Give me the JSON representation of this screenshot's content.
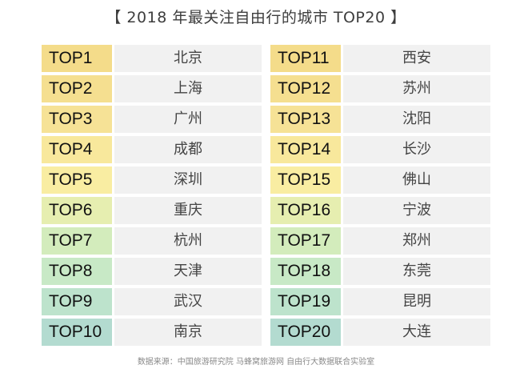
{
  "title": "【 2018 年最关注自由行的城市 TOP20 】",
  "colors": {
    "top1": "#f4dc8a",
    "top2": "#f5df90",
    "top3": "#f6e296",
    "top4": "#f8e89c",
    "top5": "#f9eda2",
    "top6": "#e6eeb0",
    "top7": "#d3ecbc",
    "top8": "#c8e9c6",
    "top9": "#bde3cc",
    "top10": "#b3dbd0",
    "city_bg": "#f1f1f1"
  },
  "left_column": [
    {
      "rank": "TOP1",
      "city": "北京"
    },
    {
      "rank": "TOP2",
      "city": "上海"
    },
    {
      "rank": "TOP3",
      "city": "广州"
    },
    {
      "rank": "TOP4",
      "city": "成都"
    },
    {
      "rank": "TOP5",
      "city": "深圳"
    },
    {
      "rank": "TOP6",
      "city": "重庆"
    },
    {
      "rank": "TOP7",
      "city": "杭州"
    },
    {
      "rank": "TOP8",
      "city": "天津"
    },
    {
      "rank": "TOP9",
      "city": "武汉"
    },
    {
      "rank": "TOP10",
      "city": "南京"
    }
  ],
  "right_column": [
    {
      "rank": "TOP11",
      "city": "西安"
    },
    {
      "rank": "TOP12",
      "city": "苏州"
    },
    {
      "rank": "TOP13",
      "city": "沈阳"
    },
    {
      "rank": "TOP14",
      "city": "长沙"
    },
    {
      "rank": "TOP15",
      "city": "佛山"
    },
    {
      "rank": "TOP16",
      "city": "宁波"
    },
    {
      "rank": "TOP17",
      "city": "郑州"
    },
    {
      "rank": "TOP18",
      "city": "东莞"
    },
    {
      "rank": "TOP19",
      "city": "昆明"
    },
    {
      "rank": "TOP20",
      "city": "大连"
    }
  ],
  "source": "数据来源：中国旅游研究院 马蜂窝旅游网 自由行大数据联合实验室"
}
